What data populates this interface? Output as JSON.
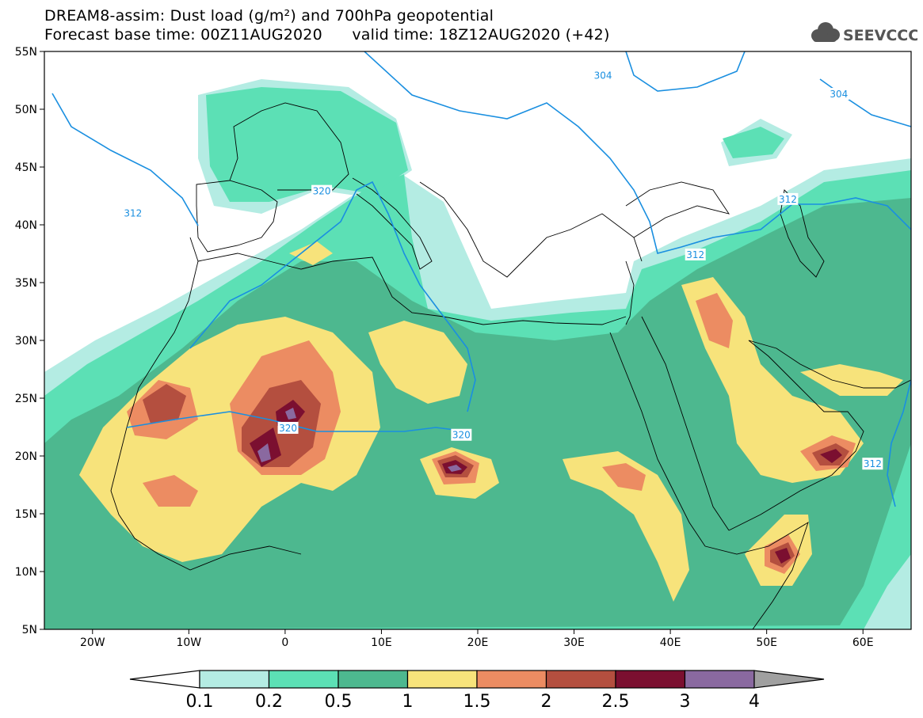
{
  "header": {
    "title_line1": "DREAM8-assim: Dust load (g/m²) and 700hPa geopotential",
    "base_time_label": "Forecast base time: 00Z11AUG2020",
    "valid_time_label": "valid time: 18Z12AUG2020 (+42)"
  },
  "logo": {
    "text": "SEEVCCC",
    "icon": "cloud-icon"
  },
  "map": {
    "lon_range": [
      -25,
      65
    ],
    "lat_range": [
      5,
      55
    ],
    "lat_ticks": [
      "55N",
      "50N",
      "45N",
      "40N",
      "35N",
      "30N",
      "25N",
      "20N",
      "15N",
      "10N",
      "5N"
    ],
    "lon_ticks": [
      "20W",
      "10W",
      "0",
      "10E",
      "20E",
      "30E",
      "40E",
      "50E",
      "60E"
    ],
    "contour_labels": [
      {
        "text": "304",
        "lon": 33.0,
        "lat": 52.9
      },
      {
        "text": "304",
        "lon": 57.5,
        "lat": 51.3
      },
      {
        "text": "320",
        "lon": 3.8,
        "lat": 42.9
      },
      {
        "text": "312",
        "lon": -15.8,
        "lat": 41.0
      },
      {
        "text": "312",
        "lon": 42.6,
        "lat": 37.4
      },
      {
        "text": "312",
        "lon": 52.2,
        "lat": 42.2
      },
      {
        "text": "320",
        "lon": 0.3,
        "lat": 22.4
      },
      {
        "text": "320",
        "lon": 18.3,
        "lat": 21.8
      },
      {
        "text": "312",
        "lon": 61.0,
        "lat": 19.3
      }
    ]
  },
  "colorbar": {
    "labels": [
      "0.1",
      "0.2",
      "0.5",
      "1",
      "1.5",
      "2",
      "2.5",
      "3",
      "4"
    ],
    "colors": [
      "#ffffff",
      "#b4ece3",
      "#5ce0b5",
      "#4db88f",
      "#f7e37b",
      "#ec8c62",
      "#b44f3f",
      "#7b0f30",
      "#8a69a0",
      "#a0a0a0"
    ]
  },
  "palette": {
    "c1": "#b4ece3",
    "c2": "#5ce0b5",
    "c3": "#4db88f",
    "c4": "#f7e37b",
    "c5": "#ec8c62",
    "c6": "#b44f3f",
    "c7": "#7b0f30",
    "c8": "#8a69a0",
    "contour": "#1a8fe0"
  }
}
